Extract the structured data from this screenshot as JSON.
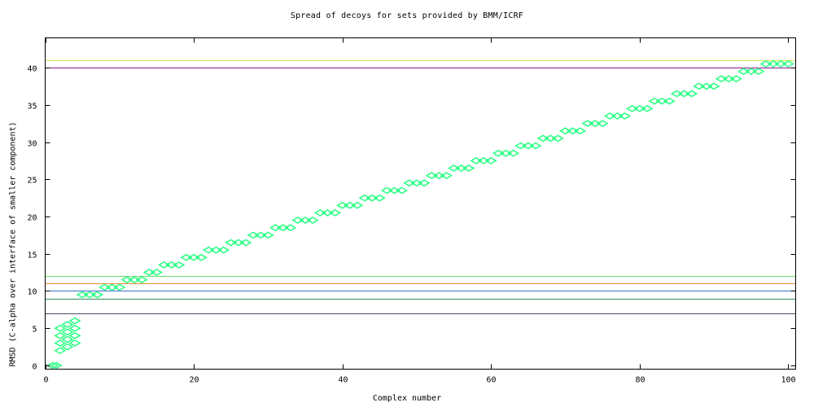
{
  "chart_data": {
    "type": "scatter",
    "title": "Spread of decoys for sets provided by BMM/ICRF",
    "xlabel": "Complex number",
    "ylabel": "RMSD (C-alpha over interface of smaller component)",
    "xlim": [
      0,
      101
    ],
    "ylim": [
      -0.5,
      44
    ],
    "xticks": [
      0,
      20,
      40,
      60,
      80,
      100
    ],
    "yticks": [
      0,
      5,
      10,
      15,
      20,
      25,
      30,
      35,
      40
    ],
    "grid": false,
    "legend": "none",
    "series": [
      {
        "color": "#33ff88",
        "marker": "diamond",
        "points": [
          [
            1,
            0
          ],
          [
            1.5,
            0
          ],
          [
            2,
            2
          ],
          [
            2,
            3
          ],
          [
            2,
            4
          ],
          [
            2,
            5
          ],
          [
            3,
            2.5
          ],
          [
            3,
            3.5
          ],
          [
            3,
            4.5
          ],
          [
            3,
            5.5
          ],
          [
            4,
            3
          ],
          [
            4,
            4
          ],
          [
            4,
            5
          ],
          [
            4,
            6
          ],
          [
            5,
            9.5
          ],
          [
            6,
            9.5
          ],
          [
            7,
            9.5
          ],
          [
            8,
            10.5
          ],
          [
            9,
            10.5
          ],
          [
            10,
            10.5
          ],
          [
            11,
            11.5
          ],
          [
            12,
            11.5
          ],
          [
            13,
            11.5
          ],
          [
            14,
            12.5
          ],
          [
            15,
            12.5
          ],
          [
            16,
            13.5
          ],
          [
            17,
            13.5
          ],
          [
            18,
            13.5
          ],
          [
            19,
            14.5
          ],
          [
            20,
            14.5
          ],
          [
            21,
            14.5
          ],
          [
            22,
            15.5
          ],
          [
            23,
            15.5
          ],
          [
            24,
            15.5
          ],
          [
            25,
            16.5
          ],
          [
            26,
            16.5
          ],
          [
            27,
            16.5
          ],
          [
            28,
            17.5
          ],
          [
            29,
            17.5
          ],
          [
            30,
            17.5
          ],
          [
            31,
            18.5
          ],
          [
            32,
            18.5
          ],
          [
            33,
            18.5
          ],
          [
            34,
            19.5
          ],
          [
            35,
            19.5
          ],
          [
            36,
            19.5
          ],
          [
            37,
            20.5
          ],
          [
            38,
            20.5
          ],
          [
            39,
            20.5
          ],
          [
            40,
            21.5
          ],
          [
            41,
            21.5
          ],
          [
            42,
            21.5
          ],
          [
            43,
            22.5
          ],
          [
            44,
            22.5
          ],
          [
            45,
            22.5
          ],
          [
            46,
            23.5
          ],
          [
            47,
            23.5
          ],
          [
            48,
            23.5
          ],
          [
            49,
            24.5
          ],
          [
            50,
            24.5
          ],
          [
            51,
            24.5
          ],
          [
            52,
            25.5
          ],
          [
            53,
            25.5
          ],
          [
            54,
            25.5
          ],
          [
            55,
            26.5
          ],
          [
            56,
            26.5
          ],
          [
            57,
            26.5
          ],
          [
            58,
            27.5
          ],
          [
            59,
            27.5
          ],
          [
            60,
            27.5
          ],
          [
            61,
            28.5
          ],
          [
            62,
            28.5
          ],
          [
            63,
            28.5
          ],
          [
            64,
            29.5
          ],
          [
            65,
            29.5
          ],
          [
            66,
            29.5
          ],
          [
            67,
            30.5
          ],
          [
            68,
            30.5
          ],
          [
            69,
            30.5
          ],
          [
            70,
            31.5
          ],
          [
            71,
            31.5
          ],
          [
            72,
            31.5
          ],
          [
            73,
            32.5
          ],
          [
            74,
            32.5
          ],
          [
            75,
            32.5
          ],
          [
            76,
            33.5
          ],
          [
            77,
            33.5
          ],
          [
            78,
            33.5
          ],
          [
            79,
            34.5
          ],
          [
            80,
            34.5
          ],
          [
            81,
            34.5
          ],
          [
            82,
            35.5
          ],
          [
            83,
            35.5
          ],
          [
            84,
            35.5
          ],
          [
            85,
            36.5
          ],
          [
            86,
            36.5
          ],
          [
            87,
            36.5
          ],
          [
            88,
            37.5
          ],
          [
            89,
            37.5
          ],
          [
            90,
            37.5
          ],
          [
            91,
            38.5
          ],
          [
            92,
            38.5
          ],
          [
            93,
            38.5
          ],
          [
            94,
            39.5
          ],
          [
            95,
            39.5
          ],
          [
            96,
            39.5
          ],
          [
            97,
            40.5
          ],
          [
            98,
            40.5
          ],
          [
            99,
            40.5
          ],
          [
            100,
            40.5
          ]
        ]
      }
    ],
    "reference_lines": [
      {
        "y": 7,
        "color": "#4a5060"
      },
      {
        "y": 9,
        "color": "#2e8b57"
      },
      {
        "y": 10,
        "color": "#3a6fcf"
      },
      {
        "y": 11,
        "color": "#e08a2a"
      },
      {
        "y": 12,
        "color": "#6be06b"
      },
      {
        "y": 40,
        "color": "#8b1a8b"
      },
      {
        "y": 41,
        "color": "#c8e85a"
      }
    ]
  }
}
